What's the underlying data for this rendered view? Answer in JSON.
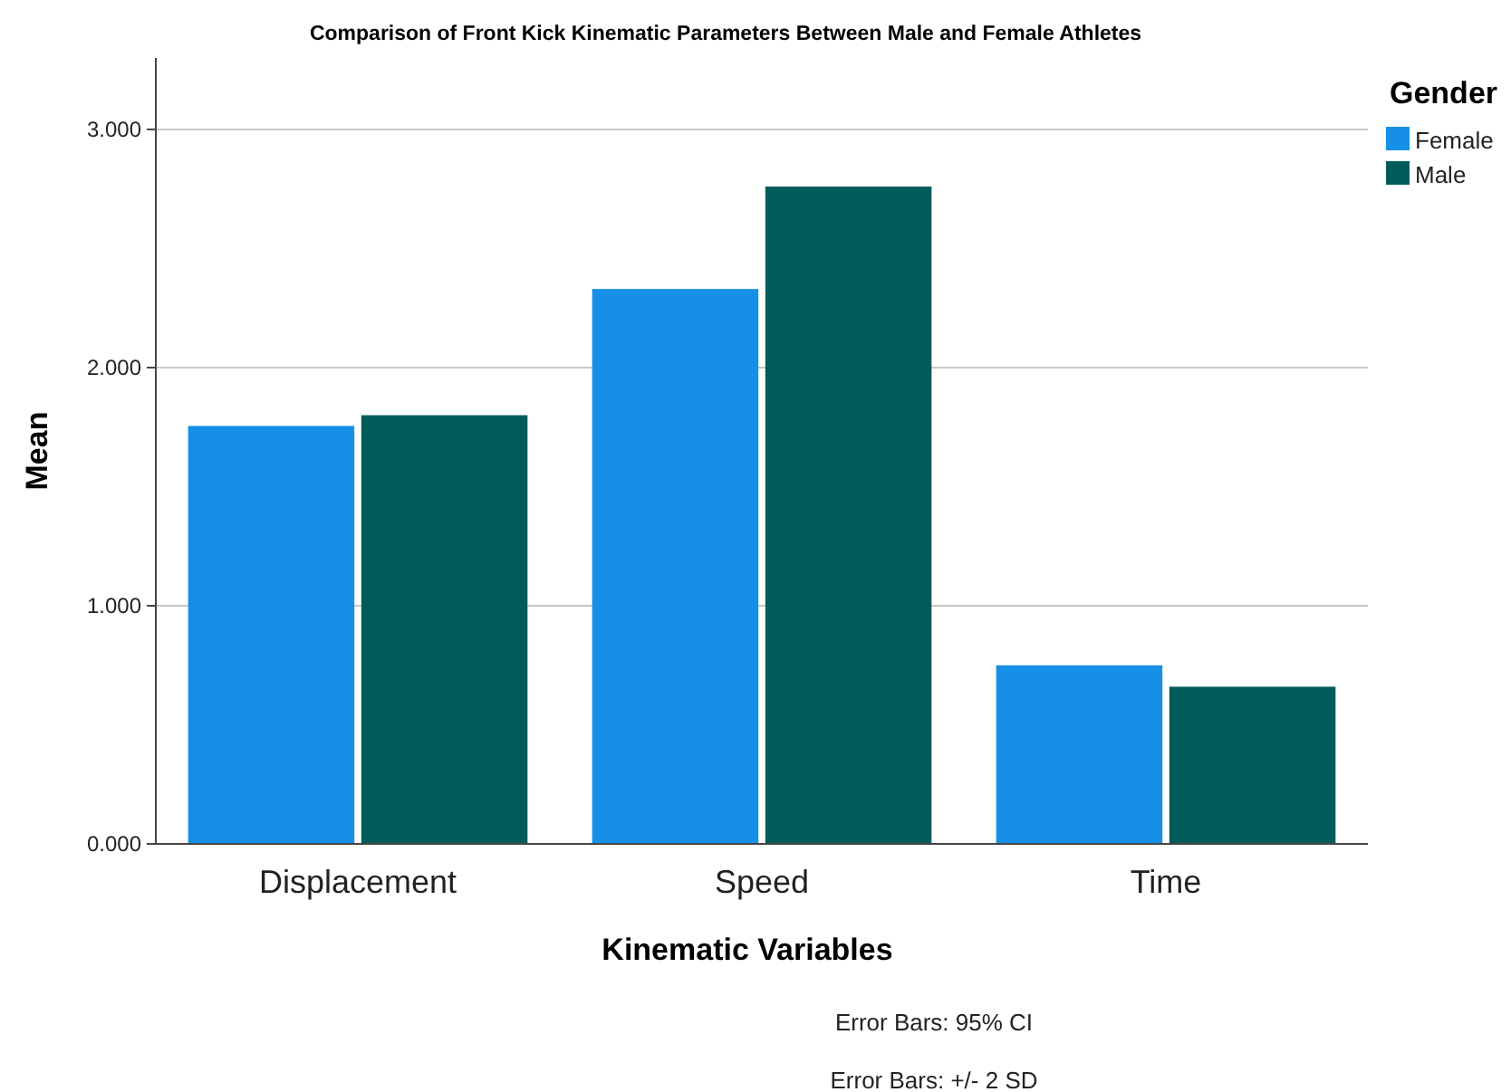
{
  "chart_data": {
    "type": "bar",
    "title": "Comparison of Front Kick Kinematic Parameters Between Male and Female Athletes",
    "xlabel": "Kinematic Variables",
    "ylabel": "Mean",
    "legend_title": "Gender",
    "categories": [
      "Displacement",
      "Speed",
      "Time"
    ],
    "series": [
      {
        "name": "Female",
        "color": "#1590e6",
        "values": [
          1.755,
          2.33,
          0.75
        ]
      },
      {
        "name": "Male",
        "color": "#005c5a",
        "values": [
          1.8,
          2.76,
          0.66
        ]
      }
    ],
    "ylim": [
      0,
      3.3
    ],
    "yticks": [
      {
        "value": 0,
        "label": "0.000"
      },
      {
        "value": 1,
        "label": "1.000"
      },
      {
        "value": 2,
        "label": "2.000"
      },
      {
        "value": 3,
        "label": "3.000"
      }
    ],
    "grid": "y",
    "legend": "top right",
    "annotations": [
      "Error Bars: 95% CI",
      "Error Bars: +/- 2 SD"
    ]
  }
}
